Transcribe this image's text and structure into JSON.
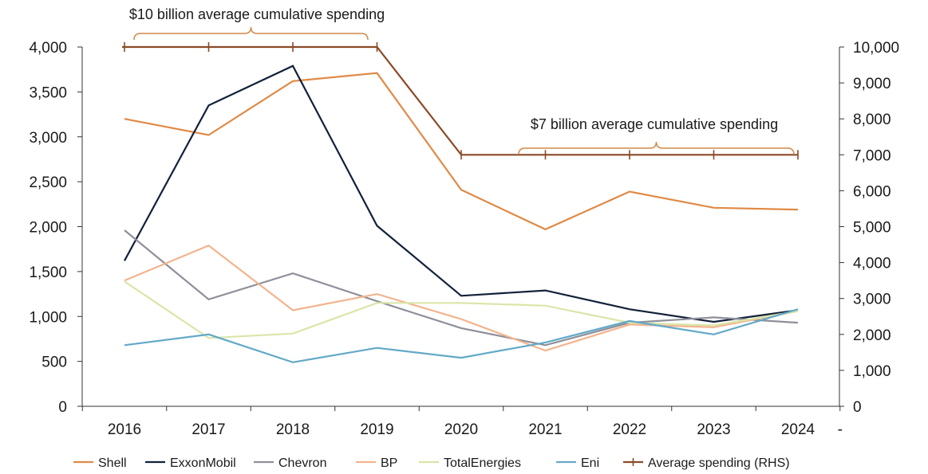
{
  "chart_data": {
    "type": "line",
    "categories": [
      "2016",
      "2017",
      "2018",
      "2019",
      "2020",
      "2021",
      "2022",
      "2023",
      "2024"
    ],
    "x_trailing_label": "-",
    "ylim_left": [
      0,
      4000
    ],
    "yticks_left": [
      "0",
      "500",
      "1,000",
      "1,500",
      "2,000",
      "2,500",
      "3,000",
      "3,500",
      "4,000"
    ],
    "ylim_right": [
      0,
      10000
    ],
    "yticks_right": [
      "0",
      "1,000",
      "2,000",
      "3,000",
      "4,000",
      "5,000",
      "6,000",
      "7,000",
      "8,000",
      "9,000",
      "10,000"
    ],
    "grid": false,
    "legend_position": "bottom",
    "series": [
      {
        "name": "Shell",
        "axis": "left",
        "color": "#E08A46",
        "values": [
          3200,
          3020,
          3620,
          3710,
          2410,
          1970,
          2390,
          2210,
          2190
        ]
      },
      {
        "name": "ExxonMobil",
        "axis": "left",
        "color": "#12203A",
        "values": [
          1620,
          3350,
          3790,
          2010,
          1230,
          1290,
          1080,
          940,
          1070
        ]
      },
      {
        "name": "Chevron",
        "axis": "left",
        "color": "#8E8F9A",
        "values": [
          1960,
          1190,
          1480,
          1170,
          870,
          680,
          930,
          990,
          930
        ]
      },
      {
        "name": "BP",
        "axis": "left",
        "color": "#F2B48E",
        "values": [
          1400,
          1790,
          1070,
          1250,
          970,
          620,
          910,
          880,
          1060
        ]
      },
      {
        "name": "TotalEnergies",
        "axis": "left",
        "color": "#D9E6A8",
        "values": [
          1390,
          760,
          810,
          1150,
          1150,
          1120,
          930,
          900,
          1060
        ]
      },
      {
        "name": "Eni",
        "axis": "left",
        "color": "#62A9C8",
        "values": [
          680,
          800,
          490,
          650,
          540,
          710,
          950,
          800,
          1080
        ]
      },
      {
        "name": "Average spending (RHS)",
        "axis": "right",
        "color": "#8B4A26",
        "x": [
          2016,
          2017,
          2018,
          2019,
          2019,
          2020,
          2021,
          2022,
          2023,
          2024
        ],
        "values": [
          10000,
          10000,
          10000,
          10000,
          10000,
          7000,
          7000,
          7000,
          7000,
          7000
        ]
      }
    ],
    "annotations": [
      {
        "text": "$10 billion average cumulative spending",
        "x_start": 2016,
        "x_end": 2019
      },
      {
        "text": "$7 billion average cumulative spending",
        "x_start": 2020.7,
        "x_end": 2024
      }
    ]
  }
}
